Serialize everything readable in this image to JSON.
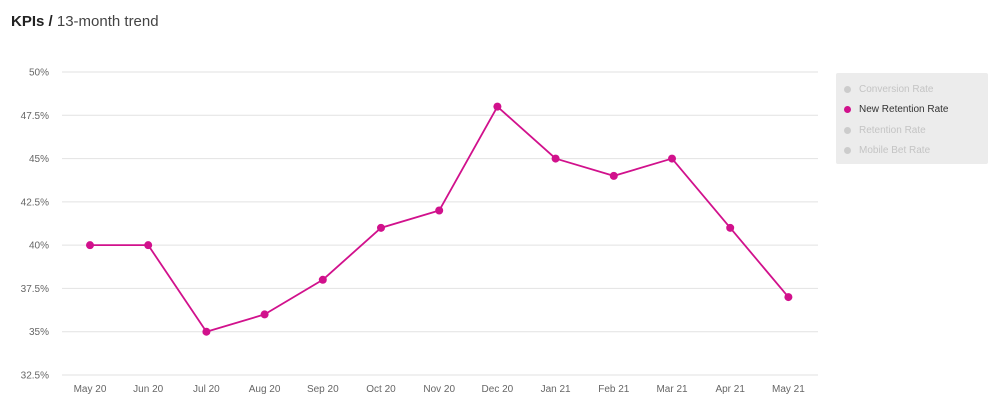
{
  "header": {
    "title_bold": "KPIs /",
    "title_rest": "13-month trend"
  },
  "legend": {
    "items": [
      {
        "label": "Conversion Rate",
        "active": false
      },
      {
        "label": "New Retention Rate",
        "active": true
      },
      {
        "label": "Retention Rate",
        "active": false
      },
      {
        "label": "Mobile Bet Rate",
        "active": false
      }
    ]
  },
  "colors": {
    "series": "#d1118c",
    "grid": "#e2e2e2",
    "tick_text": "#666666",
    "inactive": "#cccccc"
  },
  "chart_data": {
    "type": "line",
    "title": "",
    "xlabel": "",
    "ylabel": "",
    "categories": [
      "May 20",
      "Jun 20",
      "Jul 20",
      "Aug 20",
      "Sep 20",
      "Oct 20",
      "Nov 20",
      "Dec 20",
      "Jan 21",
      "Feb 21",
      "Mar 21",
      "Apr 21",
      "May 21"
    ],
    "series": [
      {
        "name": "New Retention Rate",
        "values": [
          40,
          40,
          35,
          36,
          38,
          41,
          42,
          48,
          45,
          44,
          45,
          41,
          37
        ]
      }
    ],
    "yticks": [
      "50%",
      "47.5%",
      "45%",
      "42.5%",
      "40%",
      "37.5%",
      "35%",
      "32.5%"
    ],
    "ytick_values": [
      50,
      47.5,
      45,
      42.5,
      40,
      37.5,
      35,
      32.5
    ],
    "ylim": [
      32.5,
      50
    ],
    "grid": true,
    "legend_position": "right"
  }
}
